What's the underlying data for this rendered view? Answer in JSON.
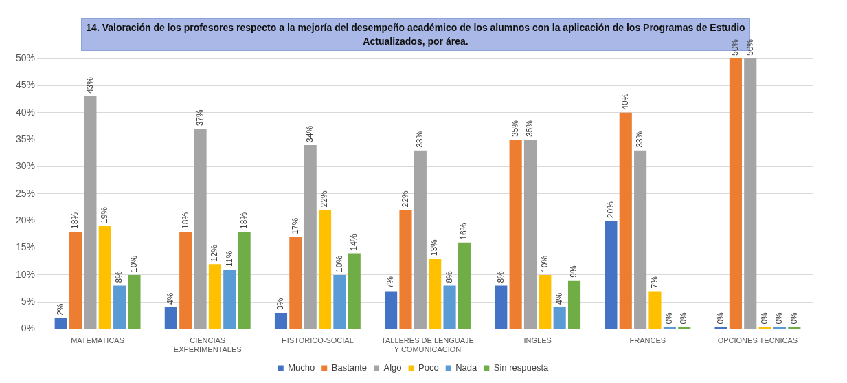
{
  "chart_data": {
    "type": "bar",
    "title": "14. Valoración de los profesores respecto a la mejoría del desempeño académico de los alumnos con la aplicación de los Programas de Estudio Actualizados, por área.",
    "categories": [
      "MATEMATICAS",
      "CIENCIAS EXPERIMENTALES",
      "HISTORICO-SOCIAL",
      "TALLERES DE LENGUAJE Y COMUNICACION",
      "INGLES",
      "FRANCES",
      "OPCIONES TECNICAS"
    ],
    "series": [
      {
        "name": "Mucho",
        "color": "#4472c4",
        "values": [
          2,
          4,
          3,
          7,
          8,
          20,
          0
        ],
        "value_labels": [
          "2%",
          "4%",
          "3%",
          "7%",
          "8%",
          "20%",
          "0%"
        ]
      },
      {
        "name": "Bastante",
        "color": "#ed7d31",
        "values": [
          18,
          18,
          17,
          22,
          35,
          40,
          50
        ],
        "value_labels": [
          "18%",
          "18%",
          "17%",
          "22%",
          "35%",
          "40%",
          "50%"
        ]
      },
      {
        "name": "Algo",
        "color": "#a5a5a5",
        "values": [
          43,
          37,
          34,
          33,
          35,
          33,
          50
        ],
        "value_labels": [
          "43%",
          "37%",
          "34%",
          "33%",
          "35%",
          "33%",
          "50%"
        ]
      },
      {
        "name": "Poco",
        "color": "#ffc000",
        "values": [
          19,
          12,
          22,
          13,
          10,
          7,
          0
        ],
        "value_labels": [
          "19%",
          "12%",
          "22%",
          "13%",
          "10%",
          "7%",
          "0%"
        ]
      },
      {
        "name": "Nada",
        "color": "#5b9bd5",
        "values": [
          8,
          11,
          10,
          8,
          4,
          0,
          0
        ],
        "value_labels": [
          "8%",
          "11%",
          "10%",
          "8%",
          "4%",
          "0%",
          "0%"
        ]
      },
      {
        "name": "Sin respuesta",
        "color": "#70ad47",
        "values": [
          10,
          18,
          14,
          16,
          9,
          0,
          0
        ],
        "value_labels": [
          "10%",
          "18%",
          "14%",
          "16%",
          "9%",
          "0%",
          "0%"
        ]
      }
    ],
    "ylim": [
      0,
      50
    ],
    "yticks": [
      {
        "value": 0,
        "label": "0%"
      },
      {
        "value": 5,
        "label": "5%"
      },
      {
        "value": 10,
        "label": "10%"
      },
      {
        "value": 15,
        "label": "15%"
      },
      {
        "value": 20,
        "label": "20%"
      },
      {
        "value": 25,
        "label": "25%"
      },
      {
        "value": 30,
        "label": "30%"
      },
      {
        "value": 35,
        "label": "35%"
      },
      {
        "value": 40,
        "label": "40%"
      },
      {
        "value": 45,
        "label": "45%"
      },
      {
        "value": 50,
        "label": "50%"
      }
    ],
    "grid": "y",
    "legend": "bottom"
  }
}
